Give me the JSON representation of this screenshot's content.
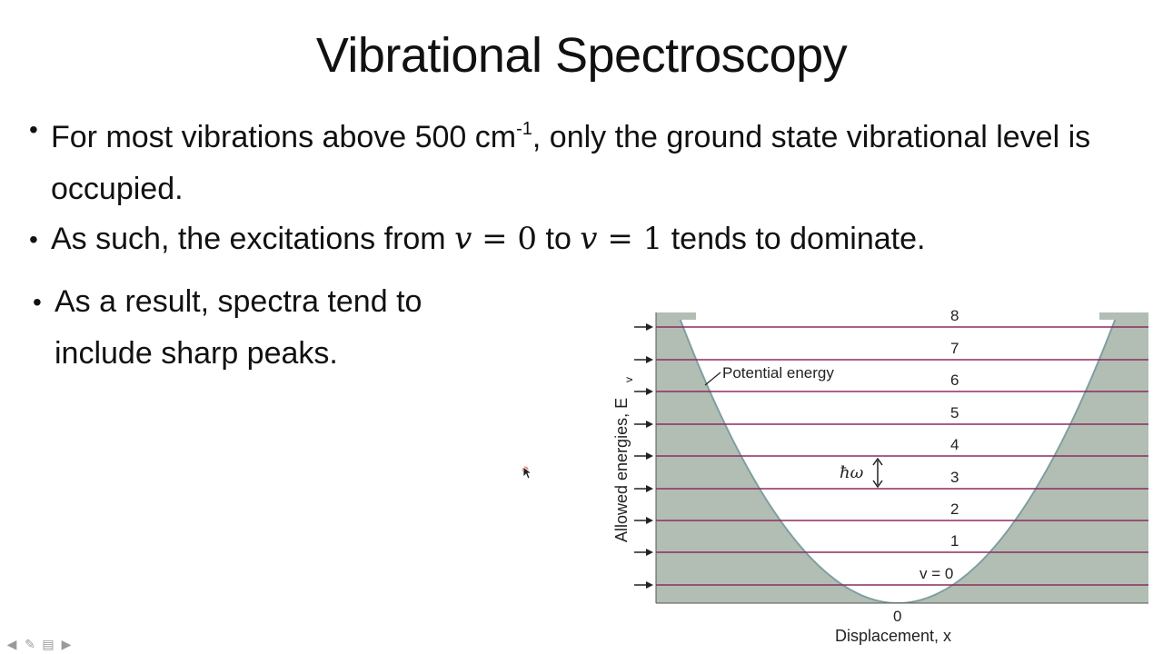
{
  "slide": {
    "title": "Vibrational Spectroscopy",
    "bullets": {
      "b1_pre": "For most vibrations above 500 cm",
      "b1_sup": "-1",
      "b1_post": ", only the ground state vibrational level is occupied.",
      "b2_pre": "As such, the excitations from ",
      "b2_math1": "v",
      "b2_eq1": " = 0",
      "b2_mid": " to ",
      "b2_math2": "v",
      "b2_eq2": " = 1",
      "b2_post": " tends to dominate.",
      "b3": "As a result, spectra tend to include sharp peaks."
    },
    "bullet_glyph": "•"
  },
  "figure": {
    "level_labels": [
      "v = 0",
      "1",
      "2",
      "3",
      "4",
      "5",
      "6",
      "7",
      "8"
    ],
    "potential_label": "Potential energy",
    "quantum_label": "ħω",
    "y_axis_label": "Allowed energies, E",
    "y_axis_sub": "v",
    "x_axis_label": "Displacement, x",
    "x_zero_label": "0",
    "colors": {
      "shade": "#b2beb4",
      "curve": "#7f9fa1",
      "level_line": "#8a2f5a",
      "arrow": "#222222"
    }
  },
  "nav": {
    "prev_icon": "arrow-left-icon",
    "pen_icon": "pen-icon",
    "menu_icon": "menu-icon",
    "next_icon": "arrow-right-icon",
    "prev_glyph": "◀",
    "pen_glyph": "✎",
    "menu_glyph": "▤",
    "next_glyph": "▶"
  }
}
